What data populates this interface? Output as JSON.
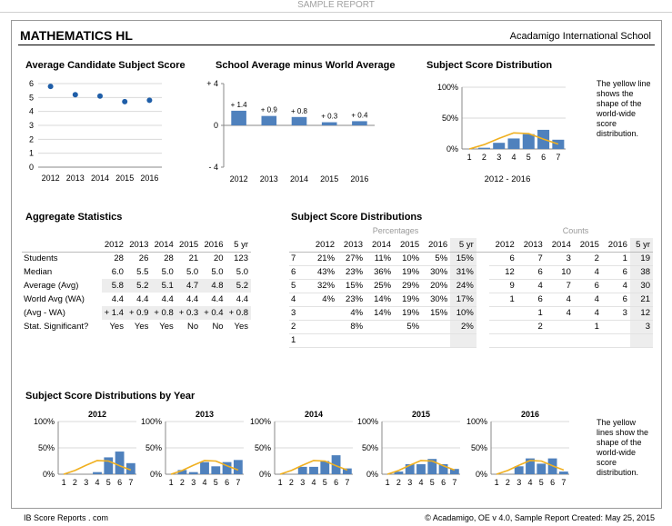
{
  "banner": "SAMPLE REPORT",
  "header": {
    "subject": "MATHEMATICS HL",
    "school": "Acadamigo International School"
  },
  "colors": {
    "bar": "#4f81bd",
    "curve": "#f0b020",
    "point": "#1f5ea8"
  },
  "avg_chart": {
    "title": "Average Candidate Subject Score",
    "chart_data": {
      "type": "scatter",
      "categories": [
        "2012",
        "2013",
        "2014",
        "2015",
        "2016"
      ],
      "values": [
        5.8,
        5.2,
        5.1,
        4.7,
        4.8
      ],
      "ylim": [
        0,
        6
      ],
      "yticks": [
        "0",
        "1",
        "2",
        "3",
        "4",
        "5",
        "6"
      ],
      "grid": true
    }
  },
  "diff_chart": {
    "title": "School Average minus World Average",
    "chart_data": {
      "type": "bar",
      "categories": [
        "2012",
        "2013",
        "2014",
        "2015",
        "2016"
      ],
      "values": [
        1.4,
        0.9,
        0.8,
        0.3,
        0.4
      ],
      "labels": [
        "+ 1.4",
        "+ 0.9",
        "+ 0.8",
        "+ 0.3",
        "+ 0.4"
      ],
      "ylim": [
        -4,
        4
      ],
      "yticks": [
        "+ 4",
        "0",
        "- 4"
      ]
    }
  },
  "dist_chart": {
    "title": "Subject Score Distribution",
    "xlabel": "2012 - 2016",
    "note": "The yellow line shows the shape of the world-wide score distribution.",
    "chart_data": {
      "type": "bar",
      "categories": [
        "1",
        "2",
        "3",
        "4",
        "5",
        "6",
        "7"
      ],
      "values": [
        0,
        2,
        10,
        17,
        24,
        31,
        15
      ],
      "world": [
        0,
        7,
        17,
        26,
        25,
        16,
        8
      ],
      "ylim": [
        0,
        100
      ],
      "yticks": [
        "0%",
        "50%",
        "100%"
      ]
    }
  },
  "aggregate": {
    "title": "Aggregate Statistics",
    "columns": [
      "2012",
      "2013",
      "2014",
      "2015",
      "2016",
      "5 yr"
    ],
    "rows": [
      {
        "label": "Students",
        "values": [
          "28",
          "26",
          "28",
          "21",
          "20",
          "123"
        ]
      },
      {
        "label": "Median",
        "values": [
          "6.0",
          "5.5",
          "5.0",
          "5.0",
          "5.0",
          "5.0"
        ]
      },
      {
        "label": "Average (Avg)",
        "values": [
          "5.8",
          "5.2",
          "5.1",
          "4.7",
          "4.8",
          "5.2"
        ]
      },
      {
        "label": "World Avg (WA)",
        "values": [
          "4.4",
          "4.4",
          "4.4",
          "4.4",
          "4.4",
          "4.4"
        ]
      },
      {
        "label": "(Avg - WA)",
        "values": [
          "+ 1.4",
          "+ 0.9",
          "+ 0.8",
          "+ 0.3",
          "+ 0.4",
          "+ 0.8"
        ]
      },
      {
        "label": "Stat. Significant?",
        "values": [
          "Yes",
          "Yes",
          "Yes",
          "No",
          "No",
          "Yes"
        ]
      }
    ]
  },
  "score_distributions": {
    "title": "Subject Score Distributions",
    "percentages_label": "Percentages",
    "counts_label": "Counts",
    "columns": [
      "2012",
      "2013",
      "2014",
      "2015",
      "2016",
      "5 yr"
    ],
    "rows": [
      {
        "score": "7",
        "pct": [
          "21%",
          "27%",
          "11%",
          "10%",
          "5%",
          "15%"
        ],
        "cnt": [
          "6",
          "7",
          "3",
          "2",
          "1",
          "19"
        ]
      },
      {
        "score": "6",
        "pct": [
          "43%",
          "23%",
          "36%",
          "19%",
          "30%",
          "31%"
        ],
        "cnt": [
          "12",
          "6",
          "10",
          "4",
          "6",
          "38"
        ]
      },
      {
        "score": "5",
        "pct": [
          "32%",
          "15%",
          "25%",
          "29%",
          "20%",
          "24%"
        ],
        "cnt": [
          "9",
          "4",
          "7",
          "6",
          "4",
          "30"
        ]
      },
      {
        "score": "4",
        "pct": [
          "4%",
          "23%",
          "14%",
          "19%",
          "30%",
          "17%"
        ],
        "cnt": [
          "1",
          "6",
          "4",
          "4",
          "6",
          "21"
        ]
      },
      {
        "score": "3",
        "pct": [
          "",
          "4%",
          "14%",
          "19%",
          "15%",
          "10%"
        ],
        "cnt": [
          "",
          "1",
          "4",
          "4",
          "3",
          "12"
        ]
      },
      {
        "score": "2",
        "pct": [
          "",
          "8%",
          "",
          "5%",
          "",
          "2%"
        ],
        "cnt": [
          "",
          "2",
          "",
          "1",
          "",
          "3"
        ]
      },
      {
        "score": "1",
        "pct": [
          "",
          "",
          "",
          "",
          "",
          ""
        ],
        "cnt": [
          "",
          "",
          "",
          "",
          "",
          ""
        ]
      }
    ]
  },
  "by_year": {
    "title": "Subject Score Distributions by Year",
    "note": "The yellow lines show the shape of the world-wide score distribution.",
    "yticks": [
      "0%",
      "50%",
      "100%"
    ],
    "categories": [
      "1",
      "2",
      "3",
      "4",
      "5",
      "6",
      "7"
    ],
    "chart_data": [
      {
        "type": "bar",
        "title": "2012",
        "values": [
          0,
          0,
          0,
          4,
          32,
          43,
          21
        ]
      },
      {
        "type": "bar",
        "title": "2013",
        "values": [
          0,
          8,
          4,
          23,
          15,
          23,
          27
        ]
      },
      {
        "type": "bar",
        "title": "2014",
        "values": [
          0,
          0,
          14,
          14,
          25,
          36,
          11
        ]
      },
      {
        "type": "bar",
        "title": "2015",
        "values": [
          0,
          5,
          19,
          19,
          29,
          19,
          10
        ]
      },
      {
        "type": "bar",
        "title": "2016",
        "values": [
          0,
          0,
          15,
          30,
          20,
          30,
          5
        ]
      }
    ]
  },
  "footer": {
    "left": "IB Score Reports . com",
    "right": "© Acadamigo,  OE v 4.0,  Sample Report Created: May 25, 2015"
  }
}
